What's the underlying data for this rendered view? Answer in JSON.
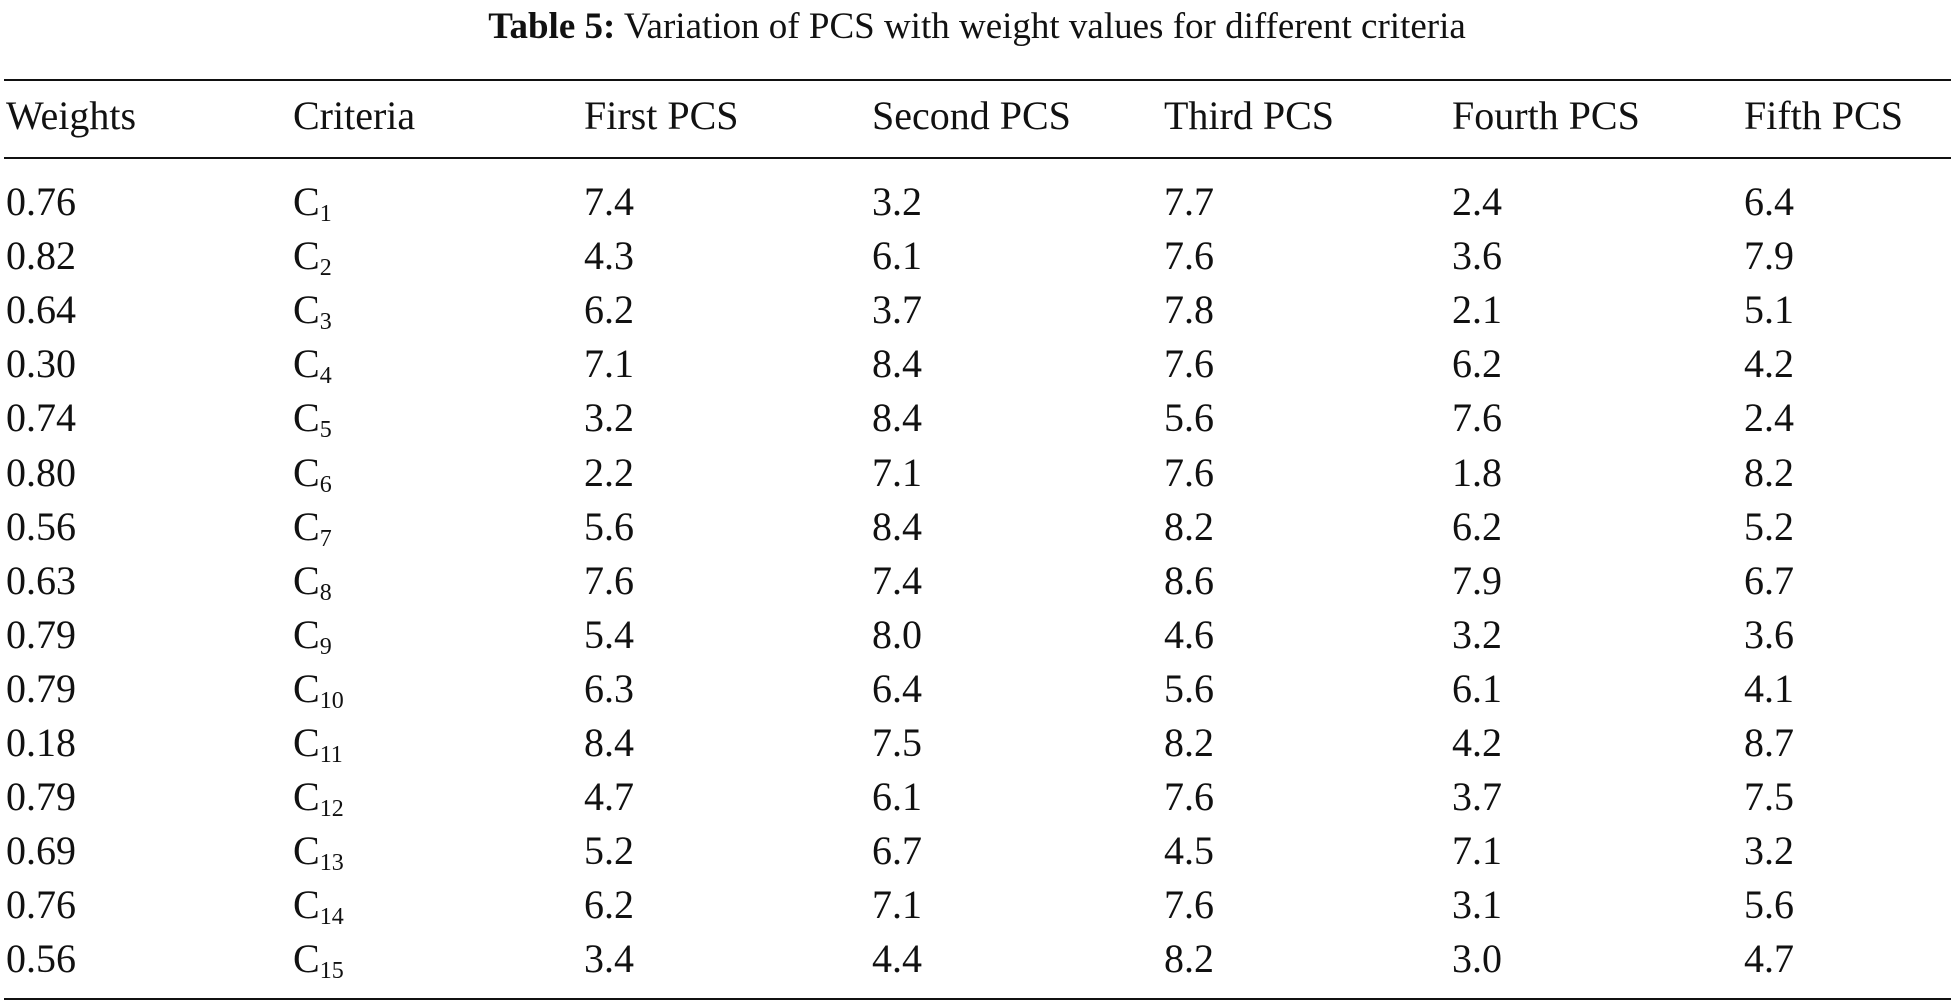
{
  "caption": {
    "label": "Table 5:",
    "text": "Variation of PCS with weight values for different criteria"
  },
  "table": {
    "headers": [
      "Weights",
      "Criteria",
      "First PCS",
      "Second PCS",
      "Third PCS",
      "Fourth PCS",
      "Fifth PCS"
    ],
    "rows": [
      {
        "weight": "0.76",
        "crit_base": "C",
        "crit_sub": "1",
        "values": [
          "7.4",
          "3.2",
          "7.7",
          "2.4",
          "6.4"
        ]
      },
      {
        "weight": "0.82",
        "crit_base": "C",
        "crit_sub": "2",
        "values": [
          "4.3",
          "6.1",
          "7.6",
          "3.6",
          "7.9"
        ]
      },
      {
        "weight": "0.64",
        "crit_base": "C",
        "crit_sub": "3",
        "values": [
          "6.2",
          "3.7",
          "7.8",
          "2.1",
          "5.1"
        ]
      },
      {
        "weight": "0.30",
        "crit_base": "C",
        "crit_sub": "4",
        "values": [
          "7.1",
          "8.4",
          "7.6",
          "6.2",
          "4.2"
        ]
      },
      {
        "weight": "0.74",
        "crit_base": "C",
        "crit_sub": "5",
        "values": [
          "3.2",
          "8.4",
          "5.6",
          "7.6",
          "2.4"
        ]
      },
      {
        "weight": "0.80",
        "crit_base": "C",
        "crit_sub": "6",
        "values": [
          "2.2",
          "7.1",
          "7.6",
          "1.8",
          "8.2"
        ]
      },
      {
        "weight": "0.56",
        "crit_base": "C",
        "crit_sub": "7",
        "values": [
          "5.6",
          "8.4",
          "8.2",
          "6.2",
          "5.2"
        ]
      },
      {
        "weight": "0.63",
        "crit_base": "C",
        "crit_sub": "8",
        "values": [
          "7.6",
          "7.4",
          "8.6",
          "7.9",
          "6.7"
        ]
      },
      {
        "weight": "0.79",
        "crit_base": "C",
        "crit_sub": "9",
        "values": [
          "5.4",
          "8.0",
          "4.6",
          "3.2",
          "3.6"
        ]
      },
      {
        "weight": "0.79",
        "crit_base": "C",
        "crit_sub": "10",
        "values": [
          "6.3",
          "6.4",
          "5.6",
          "6.1",
          "4.1"
        ]
      },
      {
        "weight": "0.18",
        "crit_base": "C",
        "crit_sub": "11",
        "values": [
          "8.4",
          "7.5",
          "8.2",
          "4.2",
          "8.7"
        ]
      },
      {
        "weight": "0.79",
        "crit_base": "C",
        "crit_sub": "12",
        "values": [
          "4.7",
          "6.1",
          "7.6",
          "3.7",
          "7.5"
        ]
      },
      {
        "weight": "0.69",
        "crit_base": "C",
        "crit_sub": "13",
        "values": [
          "5.2",
          "6.7",
          "4.5",
          "7.1",
          "3.2"
        ]
      },
      {
        "weight": "0.76",
        "crit_base": "C",
        "crit_sub": "14",
        "values": [
          "6.2",
          "7.1",
          "7.6",
          "3.1",
          "5.6"
        ]
      },
      {
        "weight": "0.56",
        "crit_base": "C",
        "crit_sub": "15",
        "values": [
          "3.4",
          "4.4",
          "8.2",
          "3.0",
          "4.7"
        ]
      }
    ]
  }
}
